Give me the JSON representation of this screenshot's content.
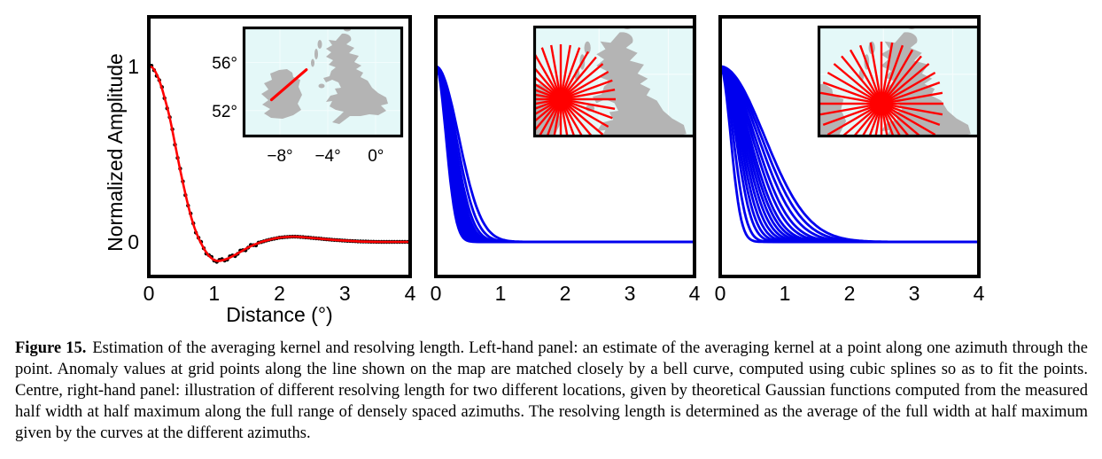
{
  "figure": {
    "caption_label": "Figure 15.",
    "caption_text": "Estimation of the averaging kernel and resolving length. Left-hand panel: an estimate of the averaging kernel at a point along one azimuth through the point. Anomaly values at grid points along the line shown on the map are matched closely by a bell curve, computed using cubic splines so as to fit the points. Centre, right-hand panel: illustration of different resolving length for two different locations, given by theoretical Gaussian functions computed from the measured half width at half maximum along the full range of densely spaced azimuths. The resolving length is determined as the average of the full width at half maximum given by the curves at the different azimuths."
  },
  "colors": {
    "blue": "#0000ee",
    "red": "#ff0000",
    "black": "#000000",
    "sea": "#e4f8f8",
    "land": "#b4b4b4",
    "frame": "#000000"
  },
  "chart_data": [
    {
      "type": "scatter",
      "panel": "left",
      "title": "",
      "xlabel": "Distance (°)",
      "ylabel": "Normalized Amplitude",
      "xlim": [
        0,
        4
      ],
      "ylim": [
        -0.2,
        1.28
      ],
      "xticks": [
        "0",
        "1",
        "2",
        "3",
        "4"
      ],
      "xtick_values": [
        0,
        1,
        2,
        3,
        4
      ],
      "ytick_labels": [
        "1",
        "0"
      ],
      "ytick_values": [
        1,
        0
      ],
      "grid": false,
      "series": [
        {
          "name": "anomaly values at grid points",
          "style": "points",
          "color": "#000000"
        },
        {
          "name": "cubic-spline bell-curve fit",
          "style": "line",
          "color": "#ff0000"
        }
      ],
      "dot_step": 0.04,
      "curve": {
        "x": [
          0,
          0.05,
          0.1,
          0.15,
          0.2,
          0.25,
          0.3,
          0.35,
          0.4,
          0.45,
          0.5,
          0.55,
          0.6,
          0.65,
          0.7,
          0.75,
          0.8,
          0.85,
          0.9,
          0.95,
          1.0,
          1.05,
          1.1,
          1.2,
          1.3,
          1.4,
          1.5,
          1.6,
          1.7,
          1.8,
          1.9,
          2.0,
          2.1,
          2.2,
          2.3,
          2.4,
          2.6,
          2.8,
          3.0,
          3.2,
          3.4,
          3.6,
          3.8,
          4.0
        ],
        "y": [
          1.0,
          0.995,
          0.97,
          0.93,
          0.875,
          0.81,
          0.74,
          0.655,
          0.56,
          0.465,
          0.375,
          0.29,
          0.21,
          0.14,
          0.08,
          0.032,
          -0.008,
          -0.042,
          -0.07,
          -0.09,
          -0.103,
          -0.108,
          -0.107,
          -0.096,
          -0.078,
          -0.057,
          -0.036,
          -0.018,
          -0.003,
          0.008,
          0.017,
          0.024,
          0.028,
          0.03,
          0.029,
          0.026,
          0.019,
          0.012,
          0.007,
          0.003,
          0.001,
          0.0,
          0.0,
          0.0
        ]
      },
      "inset_map": {
        "region": "Ireland and Great Britain",
        "lon_tick_labels": [
          "−8°",
          "−4°",
          "0°"
        ],
        "lon_tick_values": [
          -8,
          -4,
          0
        ],
        "lat_tick_labels": [
          "56°",
          "52°"
        ],
        "lat_tick_values": [
          56,
          52
        ],
        "azimuth_line_lonlat": [
          [
            -8.7,
            52.9
          ],
          [
            -5.8,
            55.4
          ]
        ]
      }
    },
    {
      "type": "line",
      "panel": "centre",
      "title": "",
      "xlabel": "",
      "xlim": [
        0,
        4
      ],
      "ylim": [
        -0.2,
        1.28
      ],
      "xticks": [
        "0",
        "1",
        "2",
        "3",
        "4"
      ],
      "xtick_values": [
        0,
        1,
        2,
        3,
        4
      ],
      "grid": false,
      "description": "theoretical Gaussian functions along densely spaced azimuths",
      "amplitude": 1,
      "sigmas": [
        0.155,
        0.165,
        0.175,
        0.185,
        0.19,
        0.195,
        0.2,
        0.205,
        0.21,
        0.22,
        0.23,
        0.245,
        0.26,
        0.28,
        0.31,
        0.35
      ],
      "inset_map": {
        "region": "Great Britain, azimuth fan at first location",
        "star": {
          "center": [
            31,
            83
          ],
          "ray_length": 62,
          "rays": 36,
          "core_radius": 12
        }
      }
    },
    {
      "type": "line",
      "panel": "right",
      "title": "",
      "xlabel": "",
      "xlim": [
        0,
        4
      ],
      "ylim": [
        -0.2,
        1.28
      ],
      "xticks": [
        "0",
        "1",
        "2",
        "3",
        "4"
      ],
      "xtick_values": [
        0,
        1,
        2,
        3,
        4
      ],
      "grid": false,
      "description": "theoretical Gaussian functions along densely spaced azimuths",
      "amplitude": 1,
      "sigmas": [
        0.16,
        0.2,
        0.24,
        0.27,
        0.3,
        0.33,
        0.36,
        0.39,
        0.42,
        0.45,
        0.49,
        0.53,
        0.58,
        0.63,
        0.68
      ],
      "inset_map": {
        "region": "Great Britain, azimuth fan at second location",
        "star": {
          "center": [
            72,
            88
          ],
          "ray_length": 70,
          "rays": 36,
          "core_radius": 13
        }
      }
    }
  ]
}
